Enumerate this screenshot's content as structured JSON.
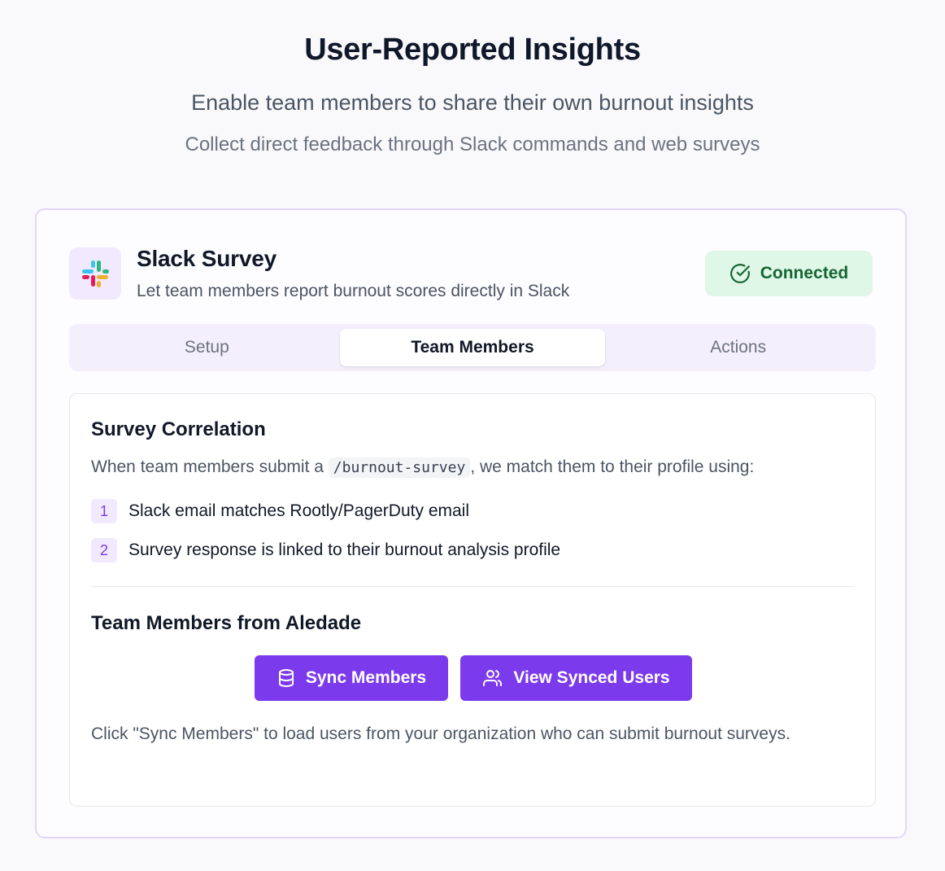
{
  "header": {
    "title": "User-Reported Insights",
    "subtitle": "Enable team members to share their own burnout insights",
    "subtitle2": "Collect direct feedback through Slack commands and web surveys"
  },
  "integration": {
    "name": "Slack Survey",
    "description": "Let team members report burnout scores directly in Slack",
    "logo_icon": "slack-logo",
    "status": "Connected",
    "status_icon": "check-circle-icon",
    "status_color": "#166534"
  },
  "tabs": [
    {
      "label": "Setup",
      "active": false
    },
    {
      "label": "Team Members",
      "active": true
    },
    {
      "label": "Actions",
      "active": false
    }
  ],
  "correlation": {
    "title": "Survey Correlation",
    "intro_before": "When team members submit a ",
    "command": "/burnout-survey",
    "intro_after": ", we match them to their profile using:",
    "steps": [
      {
        "num": "1",
        "text": "Slack email matches Rootly/PagerDuty email"
      },
      {
        "num": "2",
        "text": "Survey response is linked to their burnout analysis profile"
      }
    ]
  },
  "members": {
    "title": "Team Members from Aledade",
    "sync_button": "Sync Members",
    "sync_icon": "database-icon",
    "view_button": "View Synced Users",
    "view_icon": "users-icon",
    "help": "Click \"Sync Members\" to load users from your organization who can submit burnout surveys."
  },
  "colors": {
    "accent": "#7c3aed",
    "card_border": "#e3d6fb",
    "status_bg": "#dff7e6"
  }
}
